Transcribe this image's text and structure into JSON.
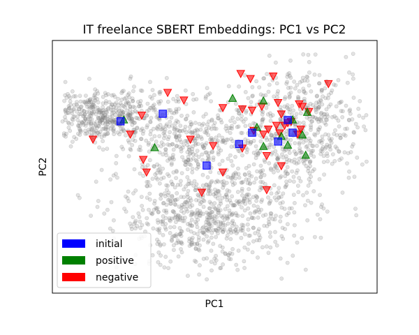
{
  "chart_data": {
    "type": "scatter",
    "title": "IT freelance SBERT Embeddings: PC1 vs PC2",
    "xlabel": "PC1",
    "ylabel": "PC2",
    "xlim": [
      0,
      100
    ],
    "ylim": [
      0,
      100
    ],
    "ticks": "none",
    "grid": false,
    "legend_placement": "lower-left",
    "background_points": {
      "color": "#808080",
      "count": 2100,
      "clusters": [
        {
          "cx": 15,
          "cy": 70,
          "sx": 9,
          "sy": 5,
          "weight": 0.22
        },
        {
          "cx": 42,
          "cy": 60,
          "sx": 12,
          "sy": 9,
          "weight": 0.18
        },
        {
          "cx": 47,
          "cy": 30,
          "sx": 13,
          "sy": 10,
          "weight": 0.3
        },
        {
          "cx": 78,
          "cy": 68,
          "sx": 10,
          "sy": 11,
          "weight": 0.2
        },
        {
          "cx": 66,
          "cy": 50,
          "sx": 13,
          "sy": 14,
          "weight": 0.1
        }
      ]
    },
    "series": [
      {
        "name": "initial",
        "marker": "square",
        "color": "#0000ff",
        "points": [
          [
            21,
            68
          ],
          [
            34,
            71
          ],
          [
            47.5,
            50.5
          ],
          [
            57.5,
            59
          ],
          [
            61.5,
            63.5
          ],
          [
            69.5,
            60
          ],
          [
            72.5,
            68.5
          ],
          [
            74,
            63.5
          ]
        ]
      },
      {
        "name": "positive",
        "marker": "triangle-up",
        "color": "#008000",
        "points": [
          [
            22,
            68.5
          ],
          [
            31.5,
            57.5
          ],
          [
            55.5,
            77
          ],
          [
            63,
            65.5
          ],
          [
            65,
            76
          ],
          [
            65,
            58
          ],
          [
            70.5,
            62
          ],
          [
            72.5,
            58.5
          ],
          [
            74,
            68.5
          ],
          [
            77,
            62.5
          ],
          [
            78,
            54.5
          ],
          [
            78.5,
            71.5
          ]
        ]
      },
      {
        "name": "negative",
        "marker": "triangle-down",
        "color": "#ff0000",
        "points": [
          [
            12.5,
            61
          ],
          [
            24,
            63
          ],
          [
            27.5,
            70.5
          ],
          [
            28,
            53
          ],
          [
            29,
            48
          ],
          [
            35.5,
            79.5
          ],
          [
            40.5,
            76.5
          ],
          [
            42.5,
            61
          ],
          [
            46,
            40
          ],
          [
            49.5,
            58.5
          ],
          [
            52.5,
            48
          ],
          [
            52.5,
            73.5
          ],
          [
            58,
            87
          ],
          [
            58.5,
            73
          ],
          [
            58.5,
            57.5
          ],
          [
            61.5,
            72.5
          ],
          [
            61,
            85
          ],
          [
            62,
            64.5
          ],
          [
            64.5,
            74
          ],
          [
            65,
            63
          ],
          [
            66,
            41
          ],
          [
            66,
            54.5
          ],
          [
            66.5,
            65
          ],
          [
            68,
            86
          ],
          [
            69.5,
            75.5
          ],
          [
            69,
            66.5
          ],
          [
            70,
            63.5
          ],
          [
            70.5,
            50.5
          ],
          [
            70.5,
            71
          ],
          [
            71.5,
            66.5
          ],
          [
            72.5,
            67.5
          ],
          [
            73.5,
            68
          ],
          [
            75.5,
            63
          ],
          [
            76,
            75
          ],
          [
            76.5,
            65
          ],
          [
            77,
            74
          ],
          [
            79,
            72
          ],
          [
            85,
            83
          ]
        ]
      }
    ]
  }
}
